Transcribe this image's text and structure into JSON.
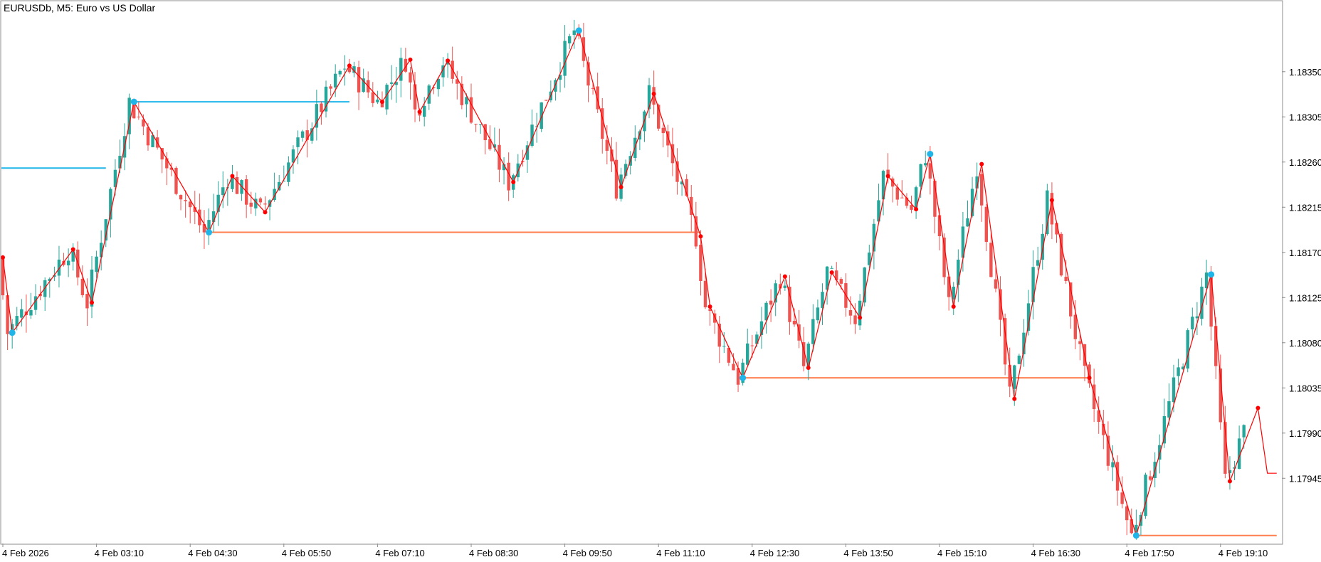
{
  "chart_title": "EURUSDb, M5:  Euro vs US Dollar",
  "colors": {
    "background": "#ffffff",
    "border": "#8c8c8c",
    "text": "#000000",
    "bull": "#26a69a",
    "bear": "#ef5350",
    "zigzag": "#ff0000",
    "swing_high": "#1fb5e8",
    "swing_low": "#ff7f50"
  },
  "chart_data": {
    "type": "candlestick",
    "title": "EURUSDb, M5:  Euro vs US Dollar",
    "ylim": [
      1.1788,
      1.1842
    ],
    "yticks": [
      "1.18350",
      "1.18305",
      "1.18260",
      "1.18215",
      "1.18170",
      "1.18125",
      "1.18080",
      "1.18035",
      "1.17990",
      "1.17945"
    ],
    "xlabels": [
      "4 Feb 2026",
      "4 Feb 03:10",
      "4 Feb 04:30",
      "4 Feb 05:50",
      "4 Feb 07:10",
      "4 Feb 08:30",
      "4 Feb 09:50",
      "4 Feb 11:10",
      "4 Feb 12:30",
      "4 Feb 13:50",
      "4 Feb 15:10",
      "4 Feb 16:30",
      "4 Feb 17:50",
      "4 Feb 19:10"
    ],
    "bar_count": 266,
    "grid": false,
    "zigzag": [
      {
        "bar": 0,
        "price": 1.18165
      },
      {
        "bar": 2,
        "price": 1.1809
      },
      {
        "bar": 15,
        "price": 1.18173
      },
      {
        "bar": 19,
        "price": 1.1812
      },
      {
        "bar": 28,
        "price": 1.1832
      },
      {
        "bar": 44,
        "price": 1.1819
      },
      {
        "bar": 49,
        "price": 1.18246
      },
      {
        "bar": 56,
        "price": 1.1821
      },
      {
        "bar": 74,
        "price": 1.18356
      },
      {
        "bar": 81,
        "price": 1.1832
      },
      {
        "bar": 87,
        "price": 1.18362
      },
      {
        "bar": 89,
        "price": 1.1831
      },
      {
        "bar": 95,
        "price": 1.18361
      },
      {
        "bar": 109,
        "price": 1.1824
      },
      {
        "bar": 123,
        "price": 1.18391
      },
      {
        "bar": 132,
        "price": 1.18235
      },
      {
        "bar": 139,
        "price": 1.18328
      },
      {
        "bar": 149,
        "price": 1.18186
      },
      {
        "bar": 151,
        "price": 1.18116
      },
      {
        "bar": 158,
        "price": 1.18045
      },
      {
        "bar": 167,
        "price": 1.18146
      },
      {
        "bar": 172,
        "price": 1.18055
      },
      {
        "bar": 177,
        "price": 1.1815
      },
      {
        "bar": 183,
        "price": 1.18105
      },
      {
        "bar": 189,
        "price": 1.18246
      },
      {
        "bar": 195,
        "price": 1.18213
      },
      {
        "bar": 198,
        "price": 1.18268
      },
      {
        "bar": 203,
        "price": 1.18116
      },
      {
        "bar": 209,
        "price": 1.18258
      },
      {
        "bar": 216,
        "price": 1.18024
      },
      {
        "bar": 224,
        "price": 1.18222
      },
      {
        "bar": 232,
        "price": 1.18045
      },
      {
        "bar": 242,
        "price": 1.17888
      },
      {
        "bar": 258,
        "price": 1.18148
      },
      {
        "bar": 262,
        "price": 1.17942
      },
      {
        "bar": 268,
        "price": 1.18015
      },
      {
        "bar": 270,
        "price": 1.1795
      },
      {
        "bar": 272,
        "price": 1.1795
      }
    ],
    "swing_high_lines": [
      {
        "from_bar": -1,
        "to_bar": 22,
        "price": 1.18254
      },
      {
        "from_bar": 28,
        "to_bar": 74,
        "price": 1.1832
      }
    ],
    "swing_low_lines": [
      {
        "from_bar": 44,
        "to_bar": 149,
        "price": 1.1819
      },
      {
        "from_bar": 158,
        "to_bar": 232,
        "price": 1.18045
      },
      {
        "from_bar": 242,
        "to_bar": 272,
        "price": 1.17888
      }
    ]
  }
}
